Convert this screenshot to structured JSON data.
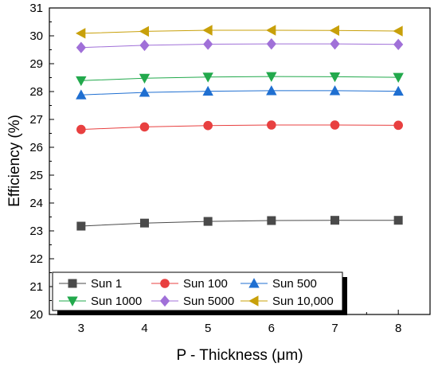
{
  "chart_data": {
    "type": "line",
    "title": "",
    "xlabel": "P - Thickness (μm)",
    "ylabel": "Efficiency (%)",
    "x": [
      3,
      4,
      5,
      6,
      7,
      8
    ],
    "xlim": [
      2.5,
      8.5
    ],
    "ylim": [
      20,
      31
    ],
    "xticks": [
      "3",
      "4",
      "5",
      "6",
      "7",
      "8"
    ],
    "yticks": [
      "20",
      "21",
      "22",
      "23",
      "24",
      "25",
      "26",
      "27",
      "28",
      "29",
      "30",
      "31"
    ],
    "grid": false,
    "legend_position": "bottom-left",
    "series": [
      {
        "name": "Sun 1",
        "marker": "square",
        "color": "#4a4a4a",
        "values": [
          23.17,
          23.28,
          23.34,
          23.37,
          23.38,
          23.38
        ]
      },
      {
        "name": "Sun 100",
        "marker": "circle",
        "color": "#e84040",
        "values": [
          26.64,
          26.73,
          26.78,
          26.8,
          26.8,
          26.79
        ]
      },
      {
        "name": "Sun 500",
        "marker": "triangle-up",
        "color": "#1f6fd1",
        "values": [
          27.88,
          27.97,
          28.01,
          28.03,
          28.03,
          28.01
        ]
      },
      {
        "name": "Sun 1000",
        "marker": "triangle-down",
        "color": "#22a94c",
        "values": [
          28.39,
          28.48,
          28.52,
          28.54,
          28.53,
          28.51
        ]
      },
      {
        "name": "Sun 5000",
        "marker": "diamond",
        "color": "#a070d8",
        "values": [
          29.58,
          29.66,
          29.7,
          29.71,
          29.71,
          29.69
        ]
      },
      {
        "name": "Sun 10,000",
        "marker": "triangle-left",
        "color": "#c8a00a",
        "values": [
          30.09,
          30.16,
          30.2,
          30.2,
          30.19,
          30.17
        ]
      }
    ]
  }
}
